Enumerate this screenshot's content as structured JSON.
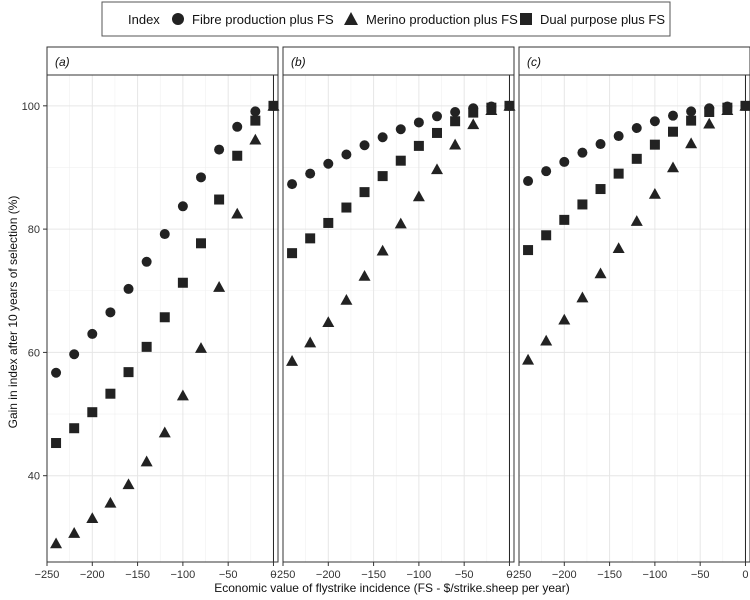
{
  "chart_data": {
    "type": "scatter",
    "xlabel": "Economic value of flystrike incidence (FS - $/strike.sheep per year)",
    "ylabel": "Gain in index after 10 years of selection (%)",
    "xlim": [
      -250,
      5
    ],
    "ylim": [
      26,
      105
    ],
    "x_ticks": [
      -250,
      -200,
      -150,
      -100,
      -50,
      0
    ],
    "x_tick_labels": [
      "−250",
      "−200",
      "−150",
      "−100",
      "−50",
      "0"
    ],
    "y_ticks": [
      40,
      60,
      80,
      100
    ],
    "y_tick_labels": [
      "40",
      "60",
      "80",
      "100"
    ],
    "grid": true,
    "legend": {
      "title": "Index",
      "position": "top",
      "entries": [
        {
          "label": "Fibre production plus FS",
          "marker": "circle"
        },
        {
          "label": "Merino production plus FS",
          "marker": "triangle"
        },
        {
          "label": "Dual purpose plus FS",
          "marker": "square"
        }
      ]
    },
    "x": [
      -240,
      -220,
      -200,
      -180,
      -160,
      -140,
      -120,
      -100,
      -80,
      -60,
      -40,
      -20,
      0
    ],
    "panels": [
      {
        "label": "(a)",
        "label_letter": "a",
        "series": [
          {
            "name": "Fibre production plus FS",
            "marker": "circle",
            "values": [
              56.7,
              59.7,
              63.0,
              66.5,
              70.3,
              74.7,
              79.2,
              83.7,
              88.4,
              92.9,
              96.6,
              99.1,
              100.0
            ]
          },
          {
            "name": "Merino production plus FS",
            "marker": "triangle",
            "values": [
              29.0,
              30.7,
              33.1,
              35.6,
              38.6,
              42.3,
              47.0,
              53.0,
              60.7,
              70.6,
              82.5,
              94.5,
              100.0
            ]
          },
          {
            "name": "Dual purpose plus FS",
            "marker": "square",
            "values": [
              45.3,
              47.7,
              50.3,
              53.3,
              56.8,
              60.9,
              65.7,
              71.3,
              77.7,
              84.8,
              91.9,
              97.6,
              100.0
            ]
          }
        ]
      },
      {
        "label": "(b)",
        "label_letter": "b",
        "series": [
          {
            "name": "Fibre production plus FS",
            "marker": "circle",
            "values": [
              87.3,
              89.0,
              90.6,
              92.1,
              93.6,
              94.9,
              96.2,
              97.3,
              98.3,
              99.0,
              99.6,
              99.9,
              100.0
            ]
          },
          {
            "name": "Merino production plus FS",
            "marker": "triangle",
            "values": [
              58.6,
              61.6,
              64.9,
              68.5,
              72.4,
              76.5,
              80.9,
              85.3,
              89.7,
              93.7,
              97.0,
              99.3,
              100.0
            ]
          },
          {
            "name": "Dual purpose plus FS",
            "marker": "square",
            "values": [
              76.1,
              78.5,
              81.0,
              83.5,
              86.0,
              88.6,
              91.1,
              93.5,
              95.6,
              97.5,
              98.9,
              99.7,
              100.0
            ]
          }
        ]
      },
      {
        "label": "(c)",
        "label_letter": "c",
        "series": [
          {
            "name": "Fibre production plus FS",
            "marker": "circle",
            "values": [
              87.8,
              89.4,
              90.9,
              92.4,
              93.8,
              95.1,
              96.4,
              97.5,
              98.4,
              99.1,
              99.6,
              99.9,
              100.0
            ]
          },
          {
            "name": "Merino production plus FS",
            "marker": "triangle",
            "values": [
              58.8,
              61.9,
              65.3,
              68.9,
              72.8,
              76.9,
              81.3,
              85.7,
              90.0,
              93.9,
              97.1,
              99.3,
              100.0
            ]
          },
          {
            "name": "Dual purpose plus FS",
            "marker": "square",
            "values": [
              76.6,
              79.0,
              81.5,
              84.0,
              86.5,
              89.0,
              91.4,
              93.7,
              95.8,
              97.6,
              99.0,
              99.7,
              100.0
            ]
          }
        ]
      }
    ]
  }
}
